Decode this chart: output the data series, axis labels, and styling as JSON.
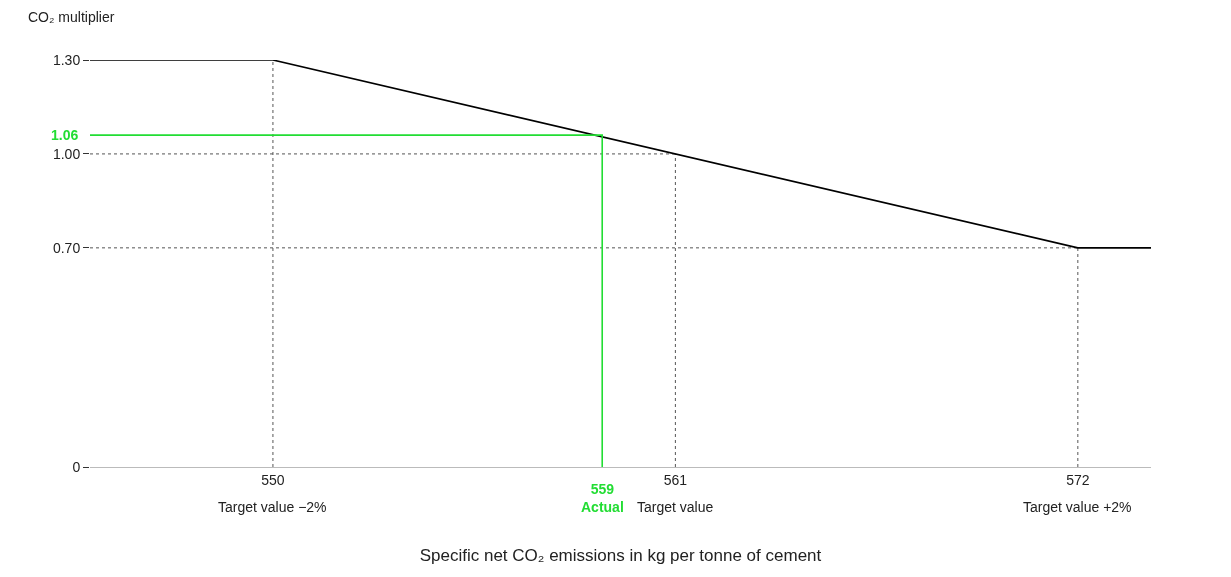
{
  "chart_data": {
    "type": "line",
    "xlabel": "Specific net CO₂ emissions in kg per tonne of cement",
    "ylabel": "CO₂ multiplier",
    "xlim": [
      545,
      574
    ],
    "xticks": [
      550,
      561,
      572
    ],
    "ylim": [
      0,
      1.3
    ],
    "yticks": [
      0,
      {
        "value": 0.7,
        "label": "0.70"
      },
      {
        "value": 1.0,
        "label": "1.00"
      },
      {
        "value": 1.3,
        "label": "1.30"
      }
    ],
    "grid": false,
    "annotations": [
      {
        "text": "1.06",
        "x": 545,
        "y": 1.06
      },
      {
        "text": "559\nActual",
        "x": 559,
        "y": 0
      },
      {
        "text": "Target value −2%",
        "x": 550,
        "y": 0
      },
      {
        "text": "Target value",
        "x": 561,
        "y": 0
      },
      {
        "text": "Target value +2%",
        "x": 572,
        "y": 0
      }
    ],
    "series": [
      {
        "color": "#555555",
        "line_style": "dotted",
        "x": [
          550,
          550
        ],
        "values": [
          0,
          1.3
        ]
      },
      {
        "color": "#555555",
        "line_style": "dotted",
        "x": [
          561,
          561
        ],
        "values": [
          0,
          1.0
        ]
      },
      {
        "color": "#555555",
        "line_style": "dotted",
        "x": [
          572,
          572
        ],
        "values": [
          0,
          0.7
        ]
      },
      {
        "color": "#555555",
        "line_style": "dotted",
        "x": [
          545,
          561
        ],
        "values": [
          1.0,
          1.0
        ]
      },
      {
        "color": "#555555",
        "line_style": "dotted",
        "x": [
          545,
          572
        ],
        "values": [
          0.7,
          0.7
        ]
      },
      {
        "color": "#000000",
        "line_style": "solid",
        "x": [
          545,
          550,
          572,
          574
        ],
        "values": [
          1.3,
          1.3,
          0.7,
          0.7
        ]
      },
      {
        "color": "#22dd33",
        "line_style": "solid",
        "x": [
          545,
          559,
          559
        ],
        "values": [
          1.06,
          1.06,
          0
        ]
      }
    ]
  }
}
